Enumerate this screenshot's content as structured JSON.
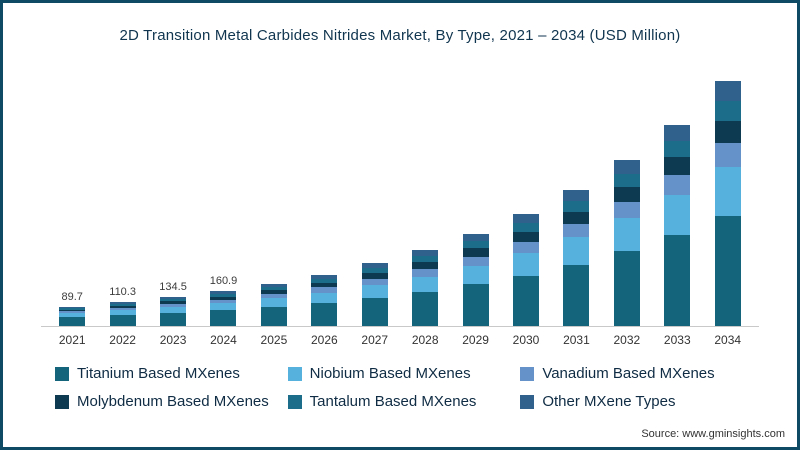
{
  "title": "2D Transition Metal Carbides Nitrides Market, By Type, 2021 – 2034 (USD Million)",
  "source": "Source: www.gminsights.com",
  "chart_data": {
    "type": "bar",
    "stacked": true,
    "grid": false,
    "legend_position": "bottom",
    "xlabel": "",
    "ylabel": "USD Million",
    "ylim": [
      0,
      1150
    ],
    "categories": [
      "2021",
      "2022",
      "2023",
      "2024",
      "2025",
      "2026",
      "2027",
      "2028",
      "2029",
      "2030",
      "2031",
      "2032",
      "2033",
      "2034"
    ],
    "bar_labels": [
      "89.7",
      "110.3",
      "134.5",
      "160.9",
      "",
      "",
      "",
      "",
      "",
      "",
      "",
      "",
      "",
      ""
    ],
    "totals": [
      89.7,
      110.3,
      134.5,
      160.9,
      195,
      237,
      288,
      350,
      425,
      516,
      627,
      762,
      926,
      1125
    ],
    "series": [
      {
        "key": "titanium",
        "name": "Titanium Based MXenes",
        "color": "#14647b",
        "values": [
          40.4,
          49.6,
          60.5,
          72.4,
          87.8,
          106.7,
          129.6,
          157.5,
          191.3,
          232.2,
          282.2,
          342.9,
          416.7,
          506.3
        ]
      },
      {
        "key": "niobium",
        "name": "Niobium Based MXenes",
        "color": "#56b1dc",
        "values": [
          17.9,
          22.1,
          26.9,
          32.2,
          39.0,
          47.4,
          57.6,
          70.0,
          85.0,
          103.2,
          125.4,
          152.4,
          185.2,
          225.0
        ]
      },
      {
        "key": "vanadium",
        "name": "Vanadium Based MXenes",
        "color": "#6593c9",
        "values": [
          9.0,
          11.0,
          13.5,
          16.1,
          19.5,
          23.7,
          28.8,
          35.0,
          42.5,
          51.6,
          62.7,
          76.2,
          92.6,
          112.5
        ]
      },
      {
        "key": "molybdenum",
        "name": "Molybdenum Based MXenes",
        "color": "#0d3a50",
        "values": [
          8.1,
          9.9,
          12.1,
          14.5,
          17.6,
          21.3,
          25.9,
          31.5,
          38.3,
          46.4,
          56.4,
          68.6,
          83.3,
          101.2
        ]
      },
      {
        "key": "tantalum",
        "name": "Tantalum Based MXenes",
        "color": "#1b6d89",
        "values": [
          7.2,
          8.8,
          10.8,
          12.9,
          15.6,
          19.0,
          23.0,
          28.0,
          34.0,
          41.3,
          50.2,
          61.0,
          74.1,
          90.0
        ]
      },
      {
        "key": "other",
        "name": "Other MXene Types",
        "color": "#2f618c",
        "values": [
          7.1,
          8.9,
          10.7,
          12.8,
          15.5,
          18.9,
          23.1,
          28.0,
          33.9,
          41.3,
          50.1,
          60.9,
          74.1,
          90.0
        ]
      }
    ]
  }
}
